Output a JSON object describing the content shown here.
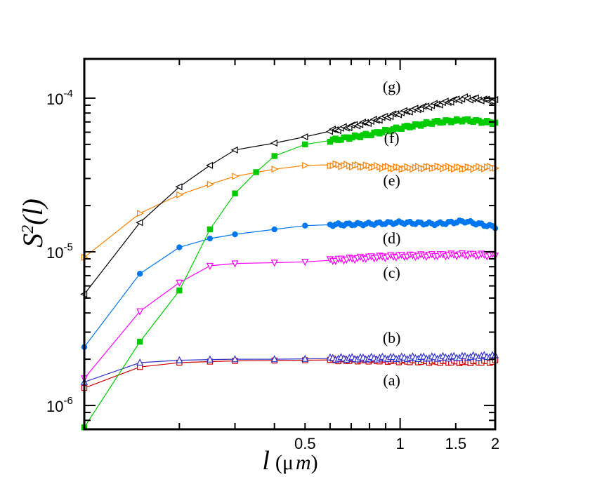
{
  "chart_data": {
    "type": "line",
    "title": "",
    "xlabel": "l (μm)",
    "xlabel_parts": {
      "var": "l",
      "unit_open": "(",
      "unit_mu": "μ",
      "unit_m": "m",
      "unit_close": ")"
    },
    "ylabel": "S²(l)",
    "ylabel_parts": {
      "base": "S",
      "sup": "2",
      "arg": "(l)"
    },
    "x_scale": "log",
    "y_scale": "log",
    "xlim": [
      0.1,
      2.0
    ],
    "ylim": [
      7e-07,
      0.00018
    ],
    "x_tick_labels": [
      {
        "value": 0.5,
        "label": "0.5"
      },
      {
        "value": 1,
        "label": "1"
      },
      {
        "value": 1.5,
        "label": "1.5"
      },
      {
        "value": 2,
        "label": "2"
      }
    ],
    "y_tick_labels": [
      {
        "value": 1e-06,
        "mantissa": "10",
        "exponent": "-6"
      },
      {
        "value": 1e-05,
        "mantissa": "10",
        "exponent": "-5"
      },
      {
        "value": 0.0001,
        "mantissa": "10",
        "exponent": "-4"
      }
    ],
    "grid": false,
    "series": [
      {
        "id": "a",
        "label": "(a)",
        "color": "#cc0000",
        "marker": "square-open",
        "dense_start": 0.6,
        "label_anchor": [
          1.0,
          1.45e-06
        ],
        "points": [
          [
            0.1,
            1.3e-06
          ],
          [
            0.15,
            1.78e-06
          ],
          [
            0.2,
            1.9e-06
          ],
          [
            0.25,
            1.93e-06
          ],
          [
            0.3,
            1.95e-06
          ],
          [
            0.4,
            1.96e-06
          ],
          [
            0.5,
            1.97e-06
          ],
          [
            0.6,
            1.98e-06
          ],
          [
            0.8,
            1.97e-06
          ],
          [
            1.0,
            1.95e-06
          ],
          [
            1.3,
            1.93e-06
          ],
          [
            1.6,
            1.92e-06
          ],
          [
            2.0,
            1.93e-06
          ]
        ]
      },
      {
        "id": "b",
        "label": "(b)",
        "color": "#3333cc",
        "marker": "triangle-up-open",
        "dense_start": 0.6,
        "label_anchor": [
          1.0,
          2.75e-06
        ],
        "points": [
          [
            0.1,
            1.42e-06
          ],
          [
            0.15,
            1.9e-06
          ],
          [
            0.2,
            1.97e-06
          ],
          [
            0.25,
            1.99e-06
          ],
          [
            0.3,
            2e-06
          ],
          [
            0.4,
            2e-06
          ],
          [
            0.5,
            2.01e-06
          ],
          [
            0.6,
            2.02e-06
          ],
          [
            0.8,
            2.03e-06
          ],
          [
            1.0,
            2.04e-06
          ],
          [
            1.3,
            2.05e-06
          ],
          [
            1.6,
            2.07e-06
          ],
          [
            2.0,
            2.1e-06
          ]
        ]
      },
      {
        "id": "c",
        "label": "(c)",
        "color": "#ff00ff",
        "marker": "triangle-down-open",
        "dense_start": 0.6,
        "label_anchor": [
          1.0,
          7.3e-06
        ],
        "points": [
          [
            0.1,
            1.5e-06
          ],
          [
            0.15,
            4.1e-06
          ],
          [
            0.2,
            6.3e-06
          ],
          [
            0.25,
            8.1e-06
          ],
          [
            0.3,
            8.4e-06
          ],
          [
            0.4,
            8.5e-06
          ],
          [
            0.5,
            8.6e-06
          ],
          [
            0.6,
            8.8e-06
          ],
          [
            0.8,
            9.2e-06
          ],
          [
            1.0,
            9.4e-06
          ],
          [
            1.3,
            9.5e-06
          ],
          [
            1.6,
            9.6e-06
          ],
          [
            2.0,
            9.5e-06
          ]
        ]
      },
      {
        "id": "d",
        "label": "(d)",
        "color": "#0077ee",
        "marker": "circle-filled",
        "dense_start": 0.6,
        "label_anchor": [
          1.0,
          1.22e-05
        ],
        "points": [
          [
            0.1,
            2.4e-06
          ],
          [
            0.15,
            7.2e-06
          ],
          [
            0.2,
            1.07e-05
          ],
          [
            0.25,
            1.22e-05
          ],
          [
            0.3,
            1.3e-05
          ],
          [
            0.4,
            1.4e-05
          ],
          [
            0.5,
            1.48e-05
          ],
          [
            0.6,
            1.5e-05
          ],
          [
            0.8,
            1.52e-05
          ],
          [
            1.0,
            1.55e-05
          ],
          [
            1.3,
            1.52e-05
          ],
          [
            1.6,
            1.58e-05
          ],
          [
            2.0,
            1.45e-05
          ]
        ]
      },
      {
        "id": "e",
        "label": "(e)",
        "color": "#ff8000",
        "marker": "triangle-right-open",
        "dense_start": 0.6,
        "label_anchor": [
          1.0,
          2.9e-05
        ],
        "points": [
          [
            0.1,
            9.2e-06
          ],
          [
            0.15,
            1.78e-05
          ],
          [
            0.2,
            2.35e-05
          ],
          [
            0.25,
            2.75e-05
          ],
          [
            0.3,
            3.1e-05
          ],
          [
            0.4,
            3.45e-05
          ],
          [
            0.5,
            3.65e-05
          ],
          [
            0.6,
            3.68e-05
          ],
          [
            0.8,
            3.6e-05
          ],
          [
            1.0,
            3.5e-05
          ],
          [
            1.3,
            3.55e-05
          ],
          [
            1.6,
            3.5e-05
          ],
          [
            2.0,
            3.55e-05
          ]
        ]
      },
      {
        "id": "f",
        "label": "(f)",
        "color": "#00cc00",
        "marker": "square-filled",
        "dense_start": 0.6,
        "label_anchor": [
          1.0,
          5.5e-05
        ],
        "points": [
          [
            0.1,
            7.2e-07
          ],
          [
            0.15,
            2.6e-06
          ],
          [
            0.2,
            5.6e-06
          ],
          [
            0.25,
            1.4e-05
          ],
          [
            0.3,
            2.4e-05
          ],
          [
            0.35,
            3.3e-05
          ],
          [
            0.4,
            4.2e-05
          ],
          [
            0.5,
            5e-05
          ],
          [
            0.6,
            5.3e-05
          ],
          [
            0.8,
            5.8e-05
          ],
          [
            1.0,
            6.4e-05
          ],
          [
            1.3,
            7e-05
          ],
          [
            1.6,
            7.2e-05
          ],
          [
            2.0,
            6.9e-05
          ]
        ]
      },
      {
        "id": "g",
        "label": "(g)",
        "color": "#000000",
        "marker": "triangle-left-open",
        "dense_start": 0.6,
        "label_anchor": [
          1.0,
          0.000118
        ],
        "points": [
          [
            0.1,
            5.3e-06
          ],
          [
            0.15,
            1.55e-05
          ],
          [
            0.2,
            2.65e-05
          ],
          [
            0.25,
            3.65e-05
          ],
          [
            0.3,
            4.6e-05
          ],
          [
            0.4,
            5.1e-05
          ],
          [
            0.5,
            5.6e-05
          ],
          [
            0.6,
            6.1e-05
          ],
          [
            0.8,
            7e-05
          ],
          [
            1.0,
            8e-05
          ],
          [
            1.3,
            9.1e-05
          ],
          [
            1.6,
            0.0001
          ],
          [
            2.0,
            9.6e-05
          ]
        ]
      }
    ]
  }
}
